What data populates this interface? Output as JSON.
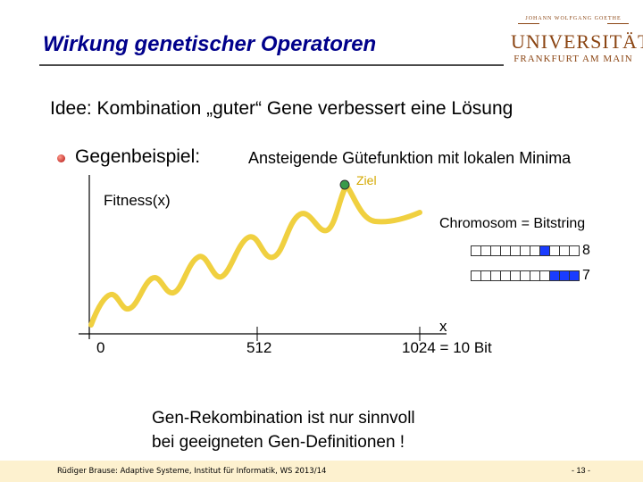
{
  "slide": {
    "title": "Wirkung genetischer Operatoren",
    "idea_label": "Idee:",
    "idea_text": " Kombination „guter“ Gene verbessert eine Lösung",
    "counterexample_label": "Gegenbeispiel:",
    "counterexample_text": "Ansteigende Gütefunktion mit lokalen Minima",
    "goal_label": "Ziel",
    "y_axis_label": "Fitness(x)",
    "x_axis_label": "x",
    "x_ticks": [
      "0",
      "512",
      "1024 = 10 Bit"
    ],
    "chromosome_label": "Chromosom = Bitstring",
    "bitstrings": [
      {
        "value_label": "8",
        "bits": [
          0,
          0,
          0,
          0,
          0,
          0,
          0,
          1,
          0,
          0,
          0
        ]
      },
      {
        "value_label": "7",
        "bits": [
          0,
          0,
          0,
          0,
          0,
          0,
          0,
          0,
          1,
          1,
          1
        ]
      }
    ],
    "conclusion_line1": "Gen-Rekombination ist nur sinnvoll",
    "conclusion_line2": "bei geeigneten Gen-Definitionen !"
  },
  "logo": {
    "line1": "JOHANN WOLFGANG GOETHE",
    "line2": "UNIVERSITÄT",
    "line3": "FRANKFURT AM MAIN"
  },
  "footer": {
    "left": "Rüdiger Brause: Adaptive Systeme, Institut für Informatik, WS 2013/14",
    "page": "- 13 -"
  },
  "colors": {
    "title": "#00008B",
    "curve": "#F0D040",
    "goal_marker": "#3a9a4a",
    "bit_on": "#1a3cff",
    "footer_bg": "#fdf1cf"
  }
}
